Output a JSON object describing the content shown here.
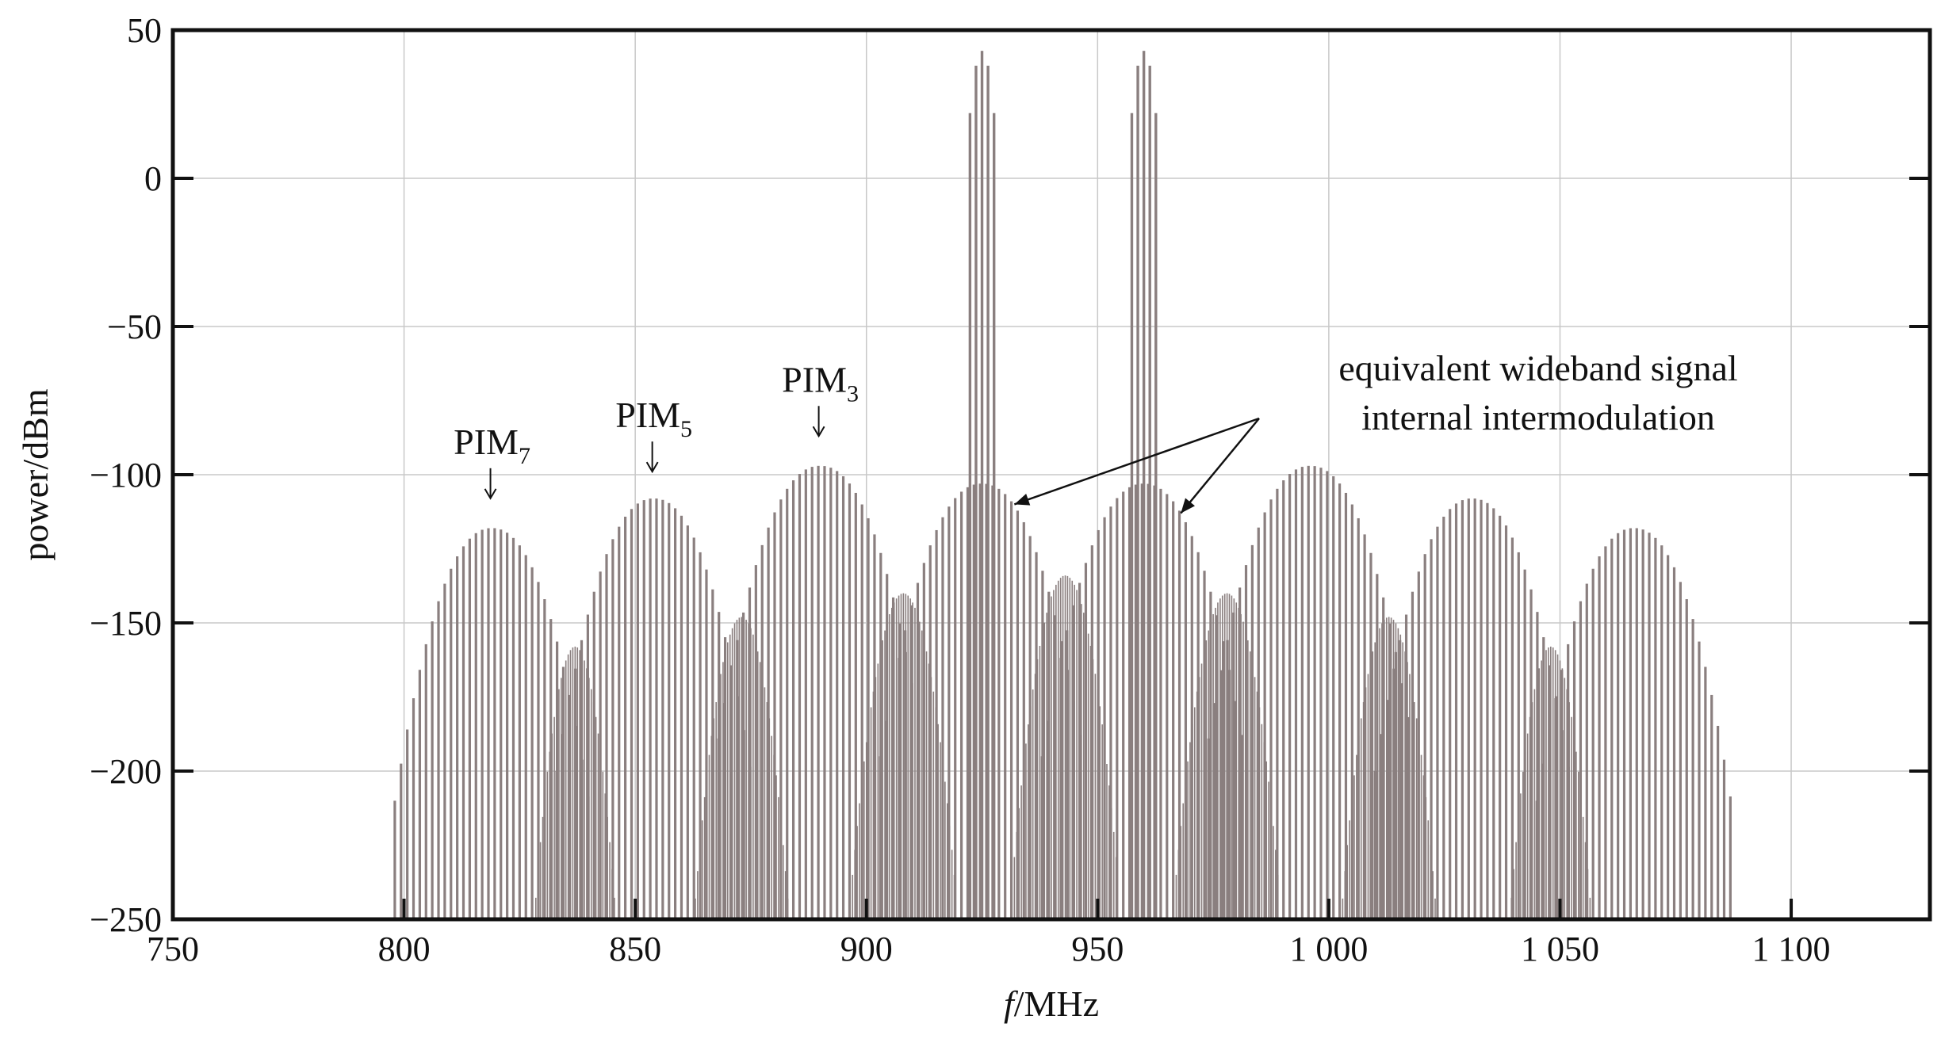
{
  "chart_data": {
    "type": "bar",
    "xlabel_italic": "f",
    "xlabel_rest": "/MHz",
    "ylabel": "power/dBm",
    "xlim": [
      750,
      1130
    ],
    "ylim": [
      -250,
      50
    ],
    "x_ticks": [
      750,
      800,
      850,
      900,
      950,
      1000,
      1050,
      1100
    ],
    "x_tick_labels": [
      "750",
      "800",
      "850",
      "900",
      "950",
      "1 000",
      "1 050",
      "1 100"
    ],
    "y_ticks": [
      50,
      0,
      -50,
      -100,
      -150,
      -200,
      -250
    ],
    "y_tick_labels": [
      "50",
      "0",
      "−50",
      "−100",
      "−150",
      "−200",
      "−250"
    ],
    "grid": true,
    "bar_color": "#8a7f7f",
    "carriers": [
      {
        "center": 925,
        "peak": 43,
        "width": 6
      },
      {
        "center": 960,
        "peak": 43,
        "width": 6
      }
    ],
    "groups": [
      {
        "center": 819,
        "peak": -118,
        "halfwidth": 21,
        "spacing": 1.35,
        "floor": -210
      },
      {
        "center": 854,
        "peak": -108,
        "halfwidth": 21,
        "spacing": 1.35,
        "floor": -228
      },
      {
        "center": 890,
        "peak": -97,
        "halfwidth": 22,
        "spacing": 1.35,
        "floor": -228
      },
      {
        "center": 925,
        "peak": -103,
        "halfwidth": 22,
        "spacing": 1.35,
        "floor": -228
      },
      {
        "center": 960,
        "peak": -103,
        "halfwidth": 22,
        "spacing": 1.35,
        "floor": -228
      },
      {
        "center": 996,
        "peak": -97,
        "halfwidth": 22,
        "spacing": 1.35,
        "floor": -228
      },
      {
        "center": 1031,
        "peak": -108,
        "halfwidth": 21,
        "spacing": 1.35,
        "floor": -228
      },
      {
        "center": 1066,
        "peak": -118,
        "halfwidth": 21,
        "spacing": 1.35,
        "floor": -210
      }
    ],
    "inner_groups": [
      {
        "center": 837,
        "peak": -158,
        "halfwidth": 9,
        "spacing": 0.5
      },
      {
        "center": 873,
        "peak": -148,
        "halfwidth": 10,
        "spacing": 0.5
      },
      {
        "center": 908,
        "peak": -140,
        "halfwidth": 11,
        "spacing": 0.5
      },
      {
        "center": 943,
        "peak": -134,
        "halfwidth": 11,
        "spacing": 0.5
      },
      {
        "center": 978,
        "peak": -140,
        "halfwidth": 11,
        "spacing": 0.5
      },
      {
        "center": 1013,
        "peak": -148,
        "halfwidth": 10,
        "spacing": 0.5
      },
      {
        "center": 1048,
        "peak": -158,
        "halfwidth": 9,
        "spacing": 0.5
      }
    ],
    "annotations": {
      "pim7": {
        "main": "PIM",
        "sub": "7",
        "x": 818,
        "y": -93
      },
      "pim5": {
        "main": "PIM",
        "sub": "5",
        "x": 853,
        "y": -84
      },
      "pim3": {
        "main": "PIM",
        "sub": "3",
        "x": 889,
        "y": -72
      },
      "wideband_line1": "equivalent wideband signal",
      "wideband_line2": "internal intermodulation"
    }
  }
}
